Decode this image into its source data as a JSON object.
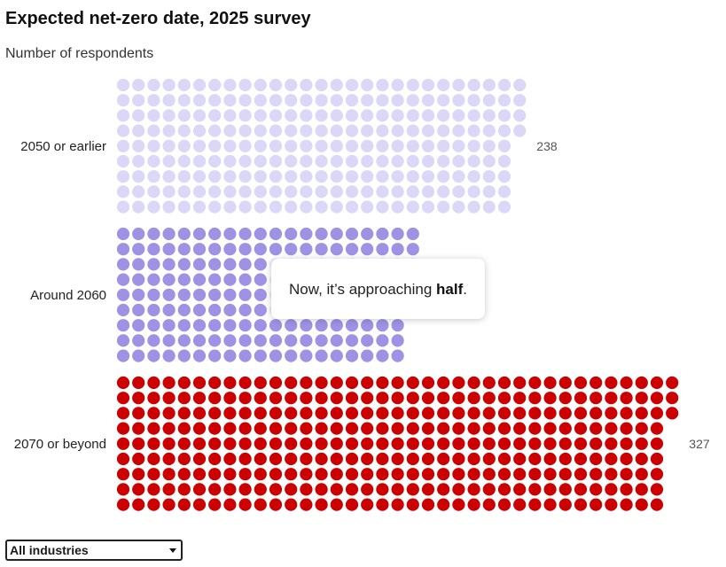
{
  "title": "Expected net-zero date, 2025 survey",
  "subtitle": "Number of respondents",
  "chart_data": {
    "type": "waffle",
    "title": "Expected net-zero date, 2025 survey",
    "subtitle": "Number of respondents",
    "unit": "respondents",
    "dots_per_column": 9,
    "categories": [
      "2050 or earlier",
      "Around 2060",
      "2070 or beyond"
    ],
    "values": [
      238,
      176,
      327
    ],
    "value_labels": [
      "238",
      "",
      "327"
    ],
    "colors": [
      "#dad7f7",
      "#9d92e4",
      "#cc0000"
    ],
    "faded_overlap_color": "#eeedfb"
  },
  "tooltip": {
    "prefix": "Now, it’s approaching ",
    "emphasis": "half",
    "suffix": "."
  },
  "filter": {
    "selected": "All industries"
  }
}
